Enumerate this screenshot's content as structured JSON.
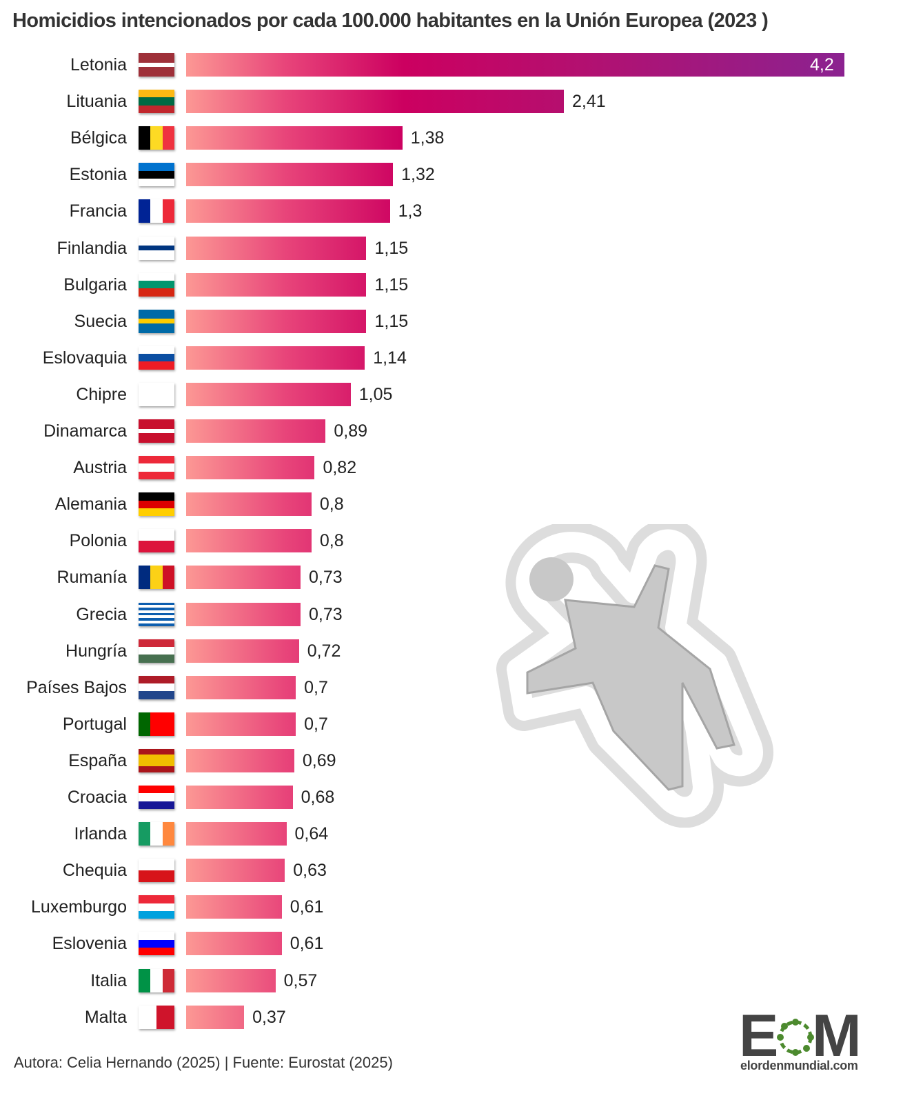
{
  "chart_data": {
    "type": "bar",
    "orientation": "horizontal",
    "title": "Homicidios intencionados por cada 100.000 habitantes en la Unión Europea (2023 )",
    "categories": [
      "Letonia",
      "Lituania",
      "Bélgica",
      "Estonia",
      "Francia",
      "Finlandia",
      "Bulgaria",
      "Suecia",
      "Eslovaquia",
      "Chipre",
      "Dinamarca",
      "Austria",
      "Alemania",
      "Polonia",
      "Rumanía",
      "Grecia",
      "Hungría",
      "Países Bajos",
      "Portugal",
      "España",
      "Croacia",
      "Irlanda",
      "Chequia",
      "Luxemburgo",
      "Eslovenia",
      "Italia",
      "Malta"
    ],
    "values": [
      4.2,
      2.41,
      1.38,
      1.32,
      1.3,
      1.15,
      1.15,
      1.15,
      1.14,
      1.05,
      0.89,
      0.82,
      0.8,
      0.8,
      0.73,
      0.73,
      0.72,
      0.7,
      0.7,
      0.69,
      0.68,
      0.64,
      0.63,
      0.61,
      0.61,
      0.57,
      0.37
    ],
    "value_labels": [
      "4,2",
      "2,41",
      "1,38",
      "1,32",
      "1,3",
      "1,15",
      "1,15",
      "1,15",
      "1,14",
      "1,05",
      "0,89",
      "0,82",
      "0,8",
      "0,8",
      "0,73",
      "0,73",
      "0,72",
      "0,7",
      "0,7",
      "0,69",
      "0,68",
      "0,64",
      "0,63",
      "0,61",
      "0,61",
      "0,57",
      "0,37"
    ],
    "xlim": [
      0,
      4.2
    ],
    "grid": false,
    "gradient_colors": [
      "#fc9894",
      "#cc0060",
      "#8b2290"
    ]
  },
  "flags": [
    {
      "d": "h",
      "c": [
        "#9e3039",
        "#9e3039",
        "#fff",
        "#9e3039",
        "#9e3039"
      ]
    },
    {
      "d": "h",
      "c": [
        "#fdb913",
        "#006a44",
        "#c1272d"
      ]
    },
    {
      "d": "v",
      "c": [
        "#000",
        "#fdda24",
        "#ef3340"
      ]
    },
    {
      "d": "h",
      "c": [
        "#0072ce",
        "#000",
        "#fff"
      ]
    },
    {
      "d": "v",
      "c": [
        "#002395",
        "#fff",
        "#ed2939"
      ]
    },
    {
      "d": "h",
      "c": [
        "#fff",
        "#fff",
        "#003580",
        "#fff",
        "#fff"
      ]
    },
    {
      "d": "h",
      "c": [
        "#fff",
        "#00966e",
        "#d62612"
      ]
    },
    {
      "d": "h",
      "c": [
        "#006aa7",
        "#006aa7",
        "#fecc00",
        "#006aa7",
        "#006aa7"
      ]
    },
    {
      "d": "h",
      "c": [
        "#fff",
        "#0b4ea2",
        "#ee1c25"
      ]
    },
    {
      "d": "h",
      "c": [
        "#fff"
      ]
    },
    {
      "d": "h",
      "c": [
        "#c8102e",
        "#c8102e",
        "#fff",
        "#c8102e",
        "#c8102e"
      ]
    },
    {
      "d": "h",
      "c": [
        "#ed2939",
        "#fff",
        "#ed2939"
      ]
    },
    {
      "d": "h",
      "c": [
        "#000",
        "#dd0000",
        "#ffce00"
      ]
    },
    {
      "d": "h",
      "c": [
        "#fff",
        "#dc143c"
      ]
    },
    {
      "d": "v",
      "c": [
        "#002b7f",
        "#fcd116",
        "#ce1126"
      ]
    },
    {
      "d": "h",
      "c": [
        "#0d5eaf",
        "#fff",
        "#0d5eaf",
        "#fff",
        "#0d5eaf",
        "#fff",
        "#0d5eaf",
        "#fff",
        "#0d5eaf"
      ]
    },
    {
      "d": "h",
      "c": [
        "#ce2939",
        "#fff",
        "#477050"
      ]
    },
    {
      "d": "h",
      "c": [
        "#ae1c28",
        "#fff",
        "#21468b"
      ]
    },
    {
      "d": "v",
      "c": [
        "#006600",
        "#ff0000",
        "#ff0000"
      ]
    },
    {
      "d": "h",
      "c": [
        "#aa151b",
        "#f1bf00",
        "#f1bf00",
        "#aa151b"
      ]
    },
    {
      "d": "h",
      "c": [
        "#ff0000",
        "#fff",
        "#171796"
      ]
    },
    {
      "d": "v",
      "c": [
        "#169b62",
        "#fff",
        "#ff883e"
      ]
    },
    {
      "d": "h",
      "c": [
        "#fff",
        "#d7141a"
      ]
    },
    {
      "d": "h",
      "c": [
        "#ed2939",
        "#fff",
        "#00a1de"
      ]
    },
    {
      "d": "h",
      "c": [
        "#fff",
        "#0000ff",
        "#ff0000"
      ]
    },
    {
      "d": "v",
      "c": [
        "#009246",
        "#fff",
        "#ce2b37"
      ]
    },
    {
      "d": "v",
      "c": [
        "#fff",
        "#cf142b"
      ]
    }
  ],
  "footer": "Autora: Celia Hernando (2025) | Fuente: Eurostat (2025)",
  "logo": {
    "letters": "EOM",
    "text": "elordenmundial.com",
    "colors": [
      "#444444",
      "#4c8a2e"
    ]
  }
}
